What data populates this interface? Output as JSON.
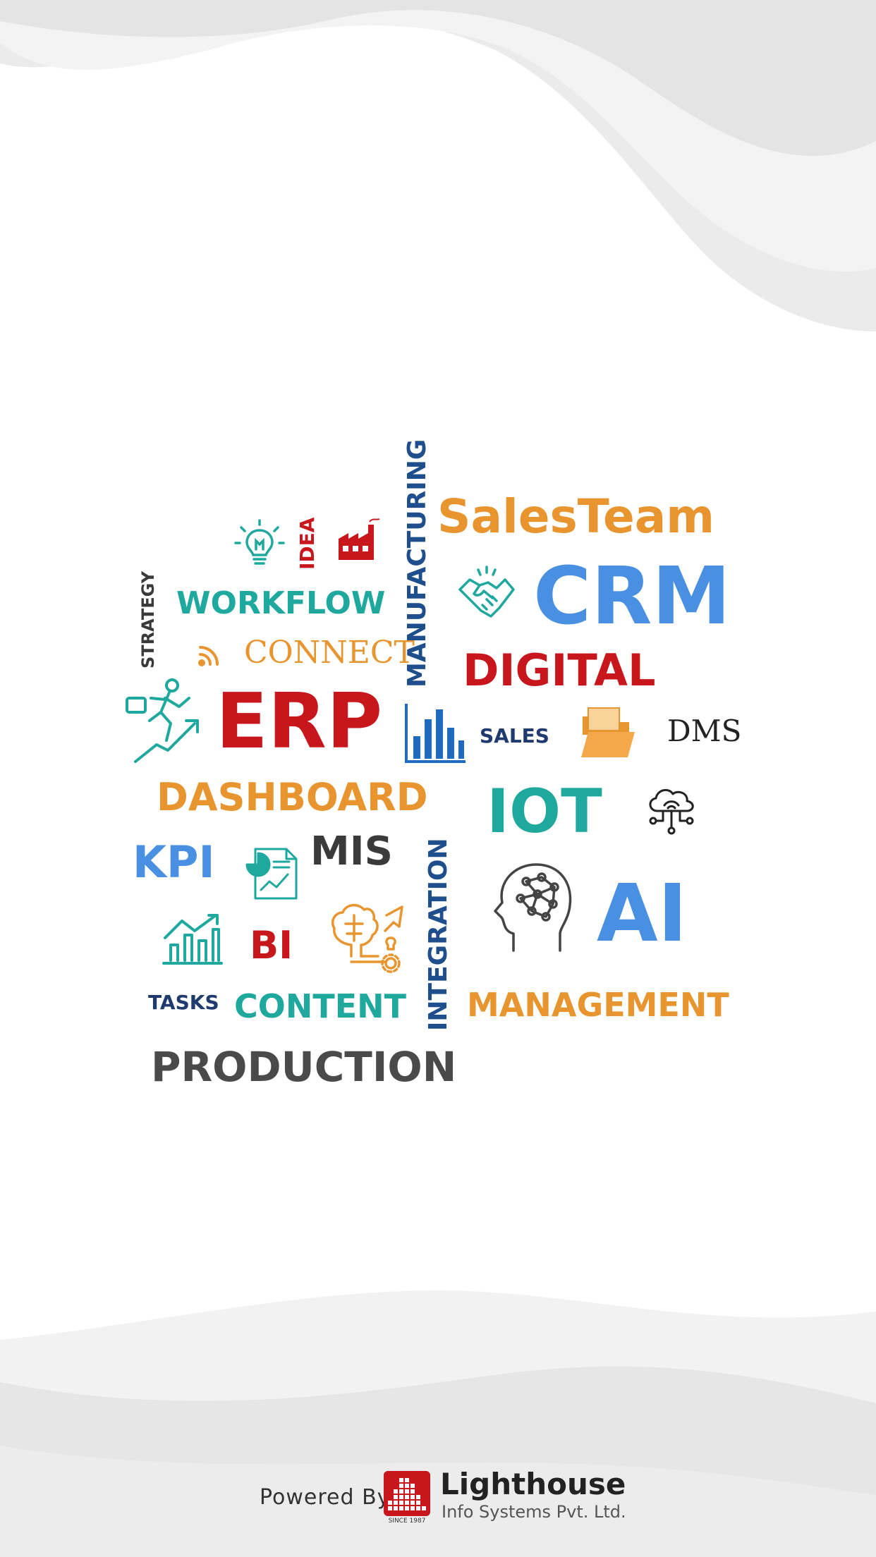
{
  "colors": {
    "red": "#c8161d",
    "blue": "#4a90e2",
    "teal": "#1fa89e",
    "orange": "#e8952f",
    "navy": "#1e4f8c",
    "dark": "#3a3a3a",
    "wave": "#e6e6e6"
  },
  "words": {
    "idea": "IDEA",
    "manufacturing": "MANUFACTURING",
    "salesteam": "SalesTeam",
    "strategy": "STRATEGY",
    "workflow": "WORKFLOW",
    "crm": "CRM",
    "connect": "CONNECT",
    "digital": "DIGITAL",
    "erp": "ERP",
    "sales": "SALES",
    "dms": "DMS",
    "dashboard": "DASHBOARD",
    "iot": "IOT",
    "kpi": "KPI",
    "mis": "MIS",
    "integration": "INTEGRATION",
    "ai": "AI",
    "bi": "BI",
    "tasks": "TASKS",
    "content": "CONTENT",
    "management": "MANAGEMENT",
    "production": "PRODUCTION"
  },
  "icons": [
    "lightbulb-icon",
    "factory-icon",
    "handshake-icon",
    "rss-icon",
    "businessman-climbing-icon",
    "bar-chart-icon",
    "folder-icon",
    "cloud-network-icon",
    "report-document-icon",
    "brain-head-icon",
    "growth-chart-icon",
    "brain-gear-icon"
  ],
  "footer": {
    "powered_by": "Powered By",
    "brand_name": "Lighthouse",
    "brand_subtitle": "Info Systems Pvt. Ltd.",
    "since": "SINCE 1987"
  }
}
